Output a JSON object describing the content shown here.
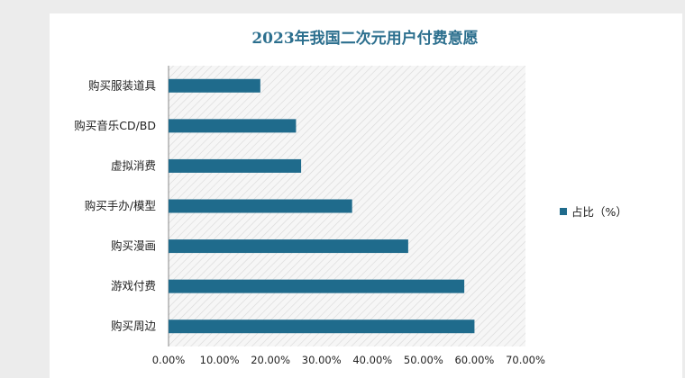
{
  "chart_data": {
    "type": "bar",
    "orientation": "horizontal",
    "title": "2023年我国二次元用户付费意愿",
    "categories": [
      "购买服装道具",
      "购买音乐CD/BD",
      "虚拟消费",
      "购买手办/模型",
      "购买漫画",
      "游戏付费",
      "购买周边"
    ],
    "series": [
      {
        "name": "占比（%）",
        "values": [
          18,
          25,
          26,
          36,
          47,
          58,
          60
        ]
      }
    ],
    "xlim": [
      0,
      70
    ],
    "x_ticks": [
      "0.00%",
      "10.00%",
      "20.00%",
      "30.00%",
      "40.00%",
      "50.00%",
      "60.00%",
      "70.00%"
    ],
    "bar_color": "#1f6b8c",
    "plot_background": "hatched light grey",
    "grid": false,
    "legend_position": "right"
  }
}
